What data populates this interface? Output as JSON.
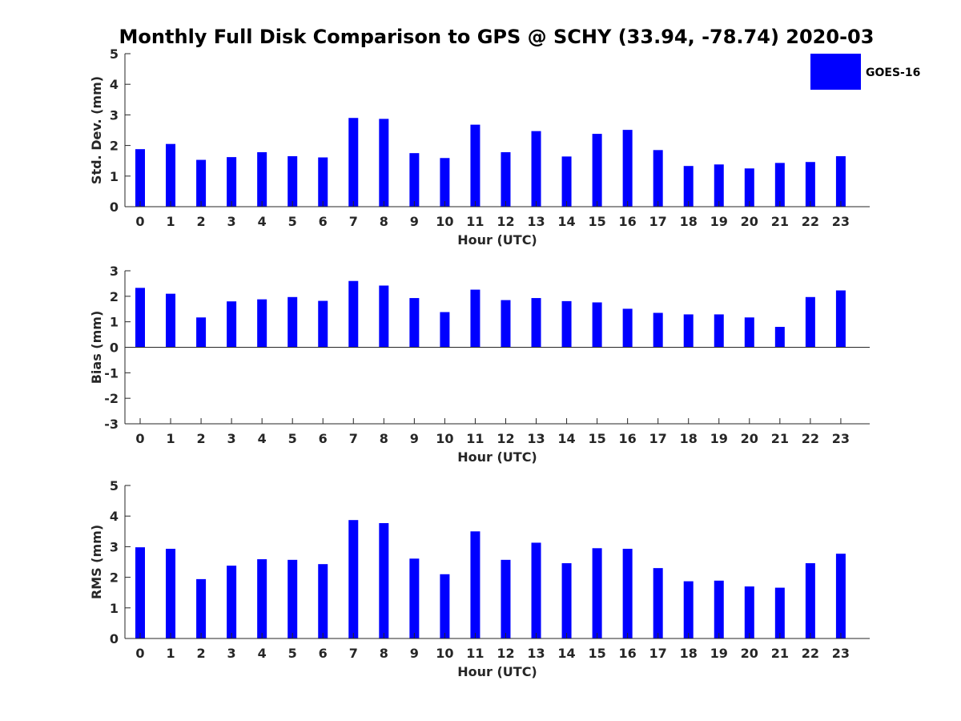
{
  "figure": {
    "title": "Monthly Full Disk Comparison to GPS @ SCHY (33.94, -78.74) 2020-03",
    "legend_label": "GOES-16",
    "bar_color": "#0000ff"
  },
  "chart_data": [
    {
      "type": "bar",
      "title": "Monthly Full Disk Comparison to GPS @ SCHY (33.94, -78.74) 2020-03",
      "xlabel": "Hour (UTC)",
      "ylabel": "Std. Dev. (mm)",
      "ylim": [
        0,
        5
      ],
      "yticks": [
        0,
        1,
        2,
        3,
        4,
        5
      ],
      "categories": [
        "0",
        "1",
        "2",
        "3",
        "4",
        "5",
        "6",
        "7",
        "8",
        "9",
        "10",
        "11",
        "12",
        "13",
        "14",
        "15",
        "16",
        "17",
        "18",
        "19",
        "20",
        "21",
        "22",
        "23"
      ],
      "series": [
        {
          "name": "GOES-16",
          "values": [
            1.88,
            2.05,
            1.53,
            1.62,
            1.78,
            1.65,
            1.61,
            2.9,
            2.87,
            1.75,
            1.59,
            2.68,
            1.78,
            2.47,
            1.64,
            2.38,
            2.51,
            1.85,
            1.33,
            1.38,
            1.25,
            1.43,
            1.46,
            1.65
          ]
        }
      ],
      "legend": "top-right"
    },
    {
      "type": "bar",
      "xlabel": "Hour (UTC)",
      "ylabel": "Bias (mm)",
      "ylim": [
        -3,
        3
      ],
      "yticks": [
        -3,
        -2,
        -1,
        0,
        1,
        2,
        3
      ],
      "categories": [
        "0",
        "1",
        "2",
        "3",
        "4",
        "5",
        "6",
        "7",
        "8",
        "9",
        "10",
        "11",
        "12",
        "13",
        "14",
        "15",
        "16",
        "17",
        "18",
        "19",
        "20",
        "21",
        "22",
        "23"
      ],
      "series": [
        {
          "name": "GOES-16",
          "values": [
            2.33,
            2.1,
            1.17,
            1.8,
            1.88,
            1.97,
            1.82,
            2.6,
            2.42,
            1.93,
            1.38,
            2.26,
            1.85,
            1.93,
            1.81,
            1.76,
            1.51,
            1.35,
            1.29,
            1.29,
            1.17,
            0.8,
            1.97,
            2.23
          ]
        }
      ]
    },
    {
      "type": "bar",
      "xlabel": "Hour (UTC)",
      "ylabel": "RMS (mm)",
      "ylim": [
        0,
        5
      ],
      "yticks": [
        0,
        1,
        2,
        3,
        4,
        5
      ],
      "categories": [
        "0",
        "1",
        "2",
        "3",
        "4",
        "5",
        "6",
        "7",
        "8",
        "9",
        "10",
        "11",
        "12",
        "13",
        "14",
        "15",
        "16",
        "17",
        "18",
        "19",
        "20",
        "21",
        "22",
        "23"
      ],
      "series": [
        {
          "name": "GOES-16",
          "values": [
            2.98,
            2.93,
            1.94,
            2.38,
            2.59,
            2.57,
            2.43,
            3.87,
            3.77,
            2.61,
            2.1,
            3.5,
            2.57,
            3.13,
            2.46,
            2.95,
            2.93,
            2.3,
            1.87,
            1.89,
            1.7,
            1.66,
            2.46,
            2.77
          ]
        }
      ]
    }
  ]
}
